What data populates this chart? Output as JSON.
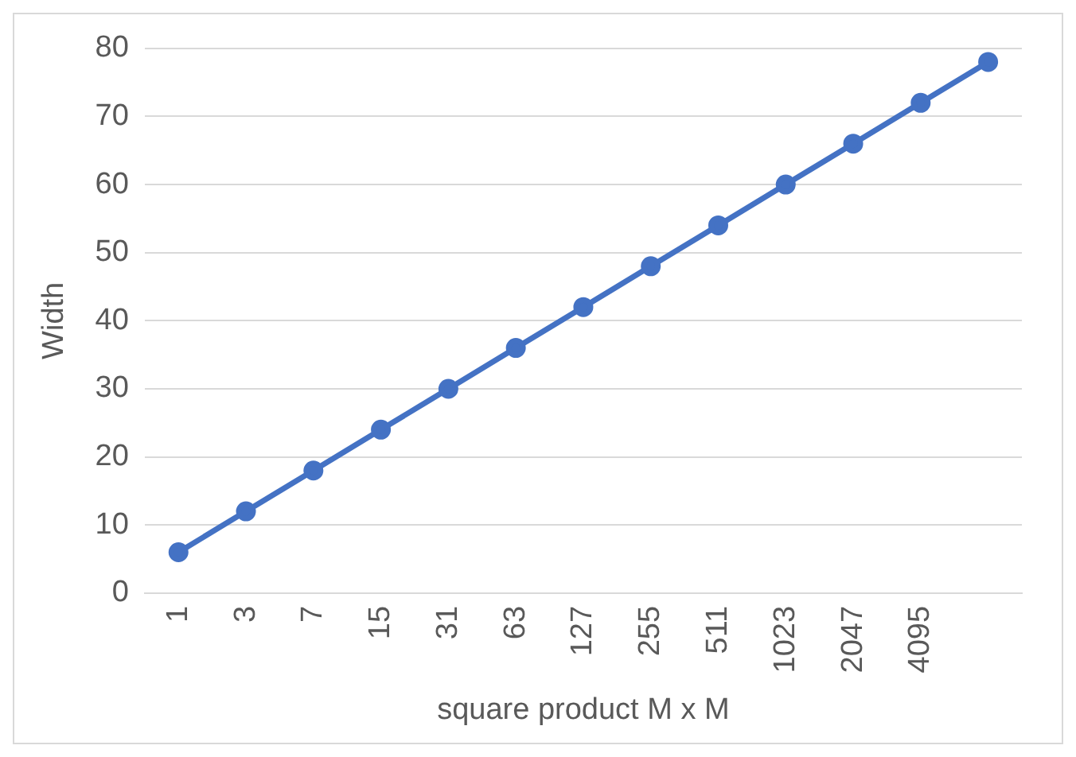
{
  "chart_data": {
    "type": "line",
    "xlabel": "square product M x M",
    "ylabel": "Width",
    "categories": [
      "1",
      "3",
      "7",
      "15",
      "31",
      "63",
      "127",
      "255",
      "511",
      "1023",
      "2047",
      "4095",
      null
    ],
    "series": [
      {
        "color": "#4472c4",
        "values": [
          6,
          12,
          18,
          24,
          30,
          36,
          42,
          48,
          54,
          60,
          66,
          72,
          78
        ]
      }
    ],
    "ylim": [
      0,
      80
    ],
    "yticks": [
      0,
      10,
      20,
      30,
      40,
      50,
      60,
      70,
      80
    ],
    "grid": "y",
    "legend": false,
    "marker": "circle",
    "line_style": "solid"
  }
}
